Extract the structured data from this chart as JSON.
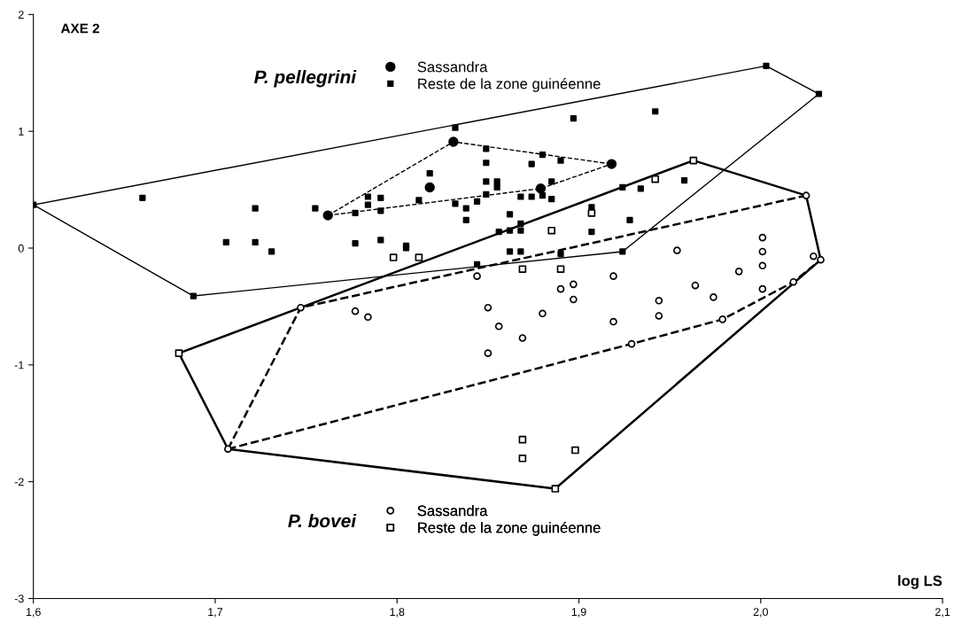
{
  "chart_data": {
    "type": "line",
    "xlabel": "log LS",
    "ylabel": "AXE 2",
    "annotations": [
      "P. pellegrini",
      "P. bovei"
    ],
    "xlim": [
      1.6,
      2.1
    ],
    "ylim": [
      -3,
      2
    ],
    "xticks": [
      {
        "value": 1.6,
        "label": "1,6"
      },
      {
        "value": 1.7,
        "label": "1,7"
      },
      {
        "value": 1.8,
        "label": "1,8"
      },
      {
        "value": 1.9,
        "label": "1,9"
      },
      {
        "value": 2.0,
        "label": "2,0"
      },
      {
        "value": 2.1,
        "label": "2,1"
      }
    ],
    "yticks": [
      -3,
      -2,
      -1,
      0,
      1,
      2
    ],
    "grid": false,
    "legend": "top left",
    "series": [
      {
        "name": "Sassandra",
        "type": "scatter",
        "marker": "circle",
        "color": "#000000",
        "x": [
          1.762,
          1.831,
          1.818,
          1.879,
          1.918
        ],
        "values": [
          0.28,
          0.91,
          0.52,
          0.51,
          0.72
        ]
      },
      {
        "name": "Reste de la zone guinéenne",
        "type": "scatter",
        "marker": "square",
        "color": "#000000",
        "x": [
          1.6,
          2.003,
          2.032,
          1.924,
          1.688,
          1.66,
          1.722,
          1.706,
          1.722,
          1.731,
          1.755,
          1.777,
          1.777,
          1.784,
          1.784,
          1.791,
          1.791,
          1.791,
          1.805,
          1.805,
          1.818,
          1.812,
          1.832,
          1.832,
          1.838,
          1.838,
          1.844,
          1.844,
          1.849,
          1.849,
          1.849,
          1.849,
          1.855,
          1.855,
          1.856,
          1.862,
          1.862,
          1.862,
          1.868,
          1.868,
          1.868,
          1.868,
          1.874,
          1.874,
          1.88,
          1.88,
          1.885,
          1.885,
          1.89,
          1.89,
          1.897,
          1.907,
          1.907,
          1.924,
          1.934,
          1.928,
          1.942,
          1.958
        ],
        "values": [
          0.37,
          1.56,
          1.32,
          -0.03,
          -0.41,
          0.43,
          0.34,
          0.05,
          0.05,
          -0.03,
          0.34,
          0.3,
          0.04,
          0.44,
          0.37,
          0.43,
          0.32,
          0.07,
          0.02,
          0.0,
          0.64,
          0.41,
          1.03,
          0.38,
          0.34,
          0.24,
          0.4,
          -0.14,
          0.85,
          0.73,
          0.57,
          0.46,
          0.57,
          0.52,
          0.14,
          0.29,
          0.15,
          -0.03,
          0.44,
          0.21,
          0.15,
          -0.03,
          0.72,
          0.44,
          0.8,
          0.45,
          0.57,
          0.42,
          0.75,
          -0.05,
          1.11,
          0.35,
          0.14,
          0.52,
          0.51,
          0.24,
          1.17,
          0.58
        ]
      },
      {
        "name": "Sassandra",
        "type": "scatter",
        "marker": "circle",
        "color": "#ffffff",
        "x": [
          1.747,
          1.707,
          1.929,
          1.979,
          2.018,
          2.033,
          2.025,
          2.029,
          1.777,
          1.784,
          1.844,
          1.85,
          1.856,
          1.85,
          1.869,
          1.88,
          1.89,
          1.897,
          1.897,
          1.919,
          1.919,
          1.944,
          1.944,
          1.954,
          1.964,
          1.974,
          1.988,
          2.001,
          2.001,
          2.001,
          2.001
        ],
        "values": [
          -0.51,
          -1.72,
          -0.82,
          -0.61,
          -0.29,
          -0.1,
          0.45,
          -0.07,
          -0.54,
          -0.59,
          -0.24,
          -0.51,
          -0.67,
          -0.9,
          -0.77,
          -0.56,
          -0.35,
          -0.31,
          -0.44,
          -0.24,
          -0.63,
          -0.45,
          -0.58,
          -0.02,
          -0.32,
          -0.42,
          -0.2,
          0.09,
          -0.03,
          -0.15,
          -0.35
        ]
      },
      {
        "name": "Reste de la zone guinéenne",
        "type": "scatter",
        "marker": "square",
        "color": "#ffffff",
        "x": [
          1.68,
          1.963,
          1.887,
          1.798,
          1.812,
          1.869,
          1.885,
          1.89,
          1.907,
          1.942,
          1.869,
          1.869,
          1.898
        ],
        "values": [
          -0.9,
          0.75,
          -2.06,
          -0.08,
          -0.08,
          -0.18,
          0.15,
          -0.18,
          0.3,
          0.59,
          -1.64,
          -1.8,
          -1.73
        ]
      },
      {
        "line_style": "solid",
        "marker": "none",
        "color": "#000000",
        "x": [
          1.6,
          2.003,
          2.032
        ],
        "values": [
          0.37,
          1.56,
          1.32
        ]
      },
      {
        "line_style": "solid",
        "marker": "none",
        "color": "#000000",
        "x": [
          1.6,
          1.688,
          1.924,
          2.032
        ],
        "values": [
          0.37,
          -0.41,
          -0.03,
          1.32
        ]
      },
      {
        "line_style": "dashed",
        "marker": "none",
        "color": "#000000",
        "x": [
          1.762,
          1.831,
          1.918
        ],
        "values": [
          0.28,
          0.91,
          0.72
        ]
      },
      {
        "line_style": "dashed",
        "marker": "none",
        "color": "#000000",
        "x": [
          1.762,
          1.879,
          1.918
        ],
        "values": [
          0.28,
          0.51,
          0.72
        ]
      },
      {
        "line_style": "solid",
        "marker": "none",
        "color": "#000000",
        "x": [
          1.68,
          1.963,
          2.025,
          2.033
        ],
        "values": [
          -0.9,
          0.75,
          0.45,
          -0.1
        ]
      },
      {
        "line_style": "solid",
        "marker": "none",
        "color": "#000000",
        "x": [
          1.68,
          1.707,
          1.887,
          2.033
        ],
        "values": [
          -0.9,
          -1.72,
          -2.06,
          -0.1
        ]
      },
      {
        "line_style": "dashed",
        "marker": "none",
        "color": "#000000",
        "x": [
          1.707,
          1.747,
          2.025
        ],
        "values": [
          -1.72,
          -0.51,
          0.45
        ]
      },
      {
        "line_style": "dashed",
        "marker": "none",
        "color": "#000000",
        "x": [
          1.707,
          1.929,
          1.979,
          2.018,
          2.033
        ],
        "values": [
          -1.72,
          -0.82,
          -0.61,
          -0.29,
          -0.1
        ]
      }
    ]
  }
}
